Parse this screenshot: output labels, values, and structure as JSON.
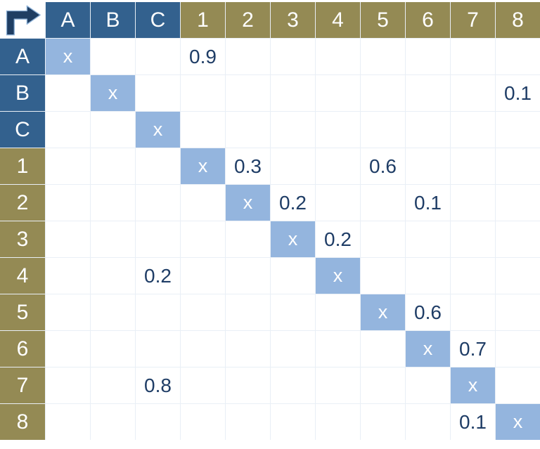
{
  "colors": {
    "header_blue": "#33618E",
    "header_olive": "#948A54",
    "diagonal_blue": "#94B5DE",
    "value_text": "#1F3D66",
    "gridline": "#E9EFF6",
    "header_text": "#FFFFFF",
    "arrow": "#1F3E63",
    "arrow_outline": "#8FB3D9",
    "background": "#FFFFFF"
  },
  "matrix": {
    "corner_icon": "elbow-arrow-icon",
    "diagonal_marker": "x",
    "columns": [
      "A",
      "B",
      "C",
      "1",
      "2",
      "3",
      "4",
      "5",
      "6",
      "7",
      "8"
    ],
    "rows": [
      {
        "header": "A",
        "cells": {
          "A": "x",
          "1": "0.9"
        }
      },
      {
        "header": "B",
        "cells": {
          "B": "x",
          "8": "0.1"
        }
      },
      {
        "header": "C",
        "cells": {
          "C": "x"
        }
      },
      {
        "header": "1",
        "cells": {
          "1": "x",
          "2": "0.3",
          "5": "0.6"
        }
      },
      {
        "header": "2",
        "cells": {
          "2": "x",
          "3": "0.2",
          "6": "0.1"
        }
      },
      {
        "header": "3",
        "cells": {
          "3": "x",
          "4": "0.2"
        }
      },
      {
        "header": "4",
        "cells": {
          "C": "0.2",
          "4": "x"
        }
      },
      {
        "header": "5",
        "cells": {
          "5": "x",
          "6": "0.6"
        }
      },
      {
        "header": "6",
        "cells": {
          "6": "x",
          "7": "0.7"
        }
      },
      {
        "header": "7",
        "cells": {
          "C": "0.8",
          "7": "x"
        }
      },
      {
        "header": "8",
        "cells": {
          "7": "0.1",
          "8": "x"
        }
      }
    ]
  }
}
